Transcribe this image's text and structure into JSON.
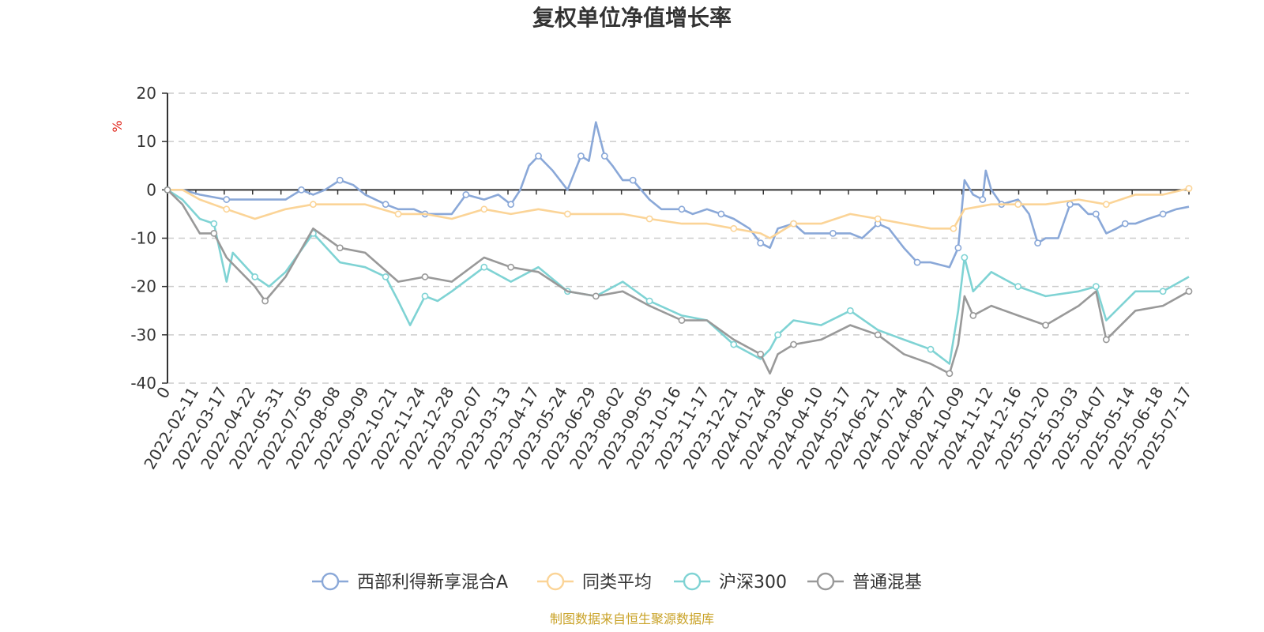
{
  "chart_data": {
    "type": "line",
    "title": "复权单位净值增长率",
    "ylabel": "%",
    "ylim": [
      -40,
      20
    ],
    "yticks": [
      "20",
      "10",
      "0",
      "-10",
      "-20",
      "-30",
      "-40"
    ],
    "ytick_values": [
      20,
      10,
      0,
      -10,
      -20,
      -30,
      -40
    ],
    "xlim": [
      "2022-01-01",
      "2025-07-21"
    ],
    "x_tick_labels": [
      "0",
      "2022-02-11",
      "2022-03-17",
      "2022-04-22",
      "2022-05-31",
      "2022-07-05",
      "2022-08-08",
      "2022-09-09",
      "2022-10-21",
      "2022-11-24",
      "2022-12-28",
      "2023-02-07",
      "2023-03-13",
      "2023-04-17",
      "2023-05-24",
      "2023-06-29",
      "2023-08-02",
      "2023-09-05",
      "2023-10-16",
      "2023-11-17",
      "2023-12-21",
      "2024-01-24",
      "2024-03-06",
      "2024-04-10",
      "2024-05-17",
      "2024-06-21",
      "2024-07-24",
      "2024-08-27",
      "2024-10-09",
      "2024-11-12",
      "2024-12-16",
      "2025-01-20",
      "2025-03-03",
      "2025-04-07",
      "2025-05-14",
      "2025-06-18",
      "2025-07-17"
    ],
    "grid": true,
    "legend_position": "bottom",
    "series": [
      {
        "name": "西部利得新享混合A",
        "color": "#8aa8d8",
        "points": [
          [
            "2022-01-01",
            0
          ],
          [
            "2022-01-20",
            0
          ],
          [
            "2022-02-11",
            -1
          ],
          [
            "2022-03-17",
            -2
          ],
          [
            "2022-04-22",
            -2
          ],
          [
            "2022-05-31",
            -2
          ],
          [
            "2022-06-20",
            0
          ],
          [
            "2022-07-05",
            -1
          ],
          [
            "2022-07-20",
            0
          ],
          [
            "2022-08-08",
            2
          ],
          [
            "2022-08-25",
            1
          ],
          [
            "2022-09-09",
            -1
          ],
          [
            "2022-10-05",
            -3
          ],
          [
            "2022-10-21",
            -4
          ],
          [
            "2022-11-10",
            -4
          ],
          [
            "2022-11-24",
            -5
          ],
          [
            "2022-12-10",
            -5
          ],
          [
            "2022-12-28",
            -5
          ],
          [
            "2023-01-15",
            -1
          ],
          [
            "2023-02-07",
            -2
          ],
          [
            "2023-02-25",
            -1
          ],
          [
            "2023-03-13",
            -3
          ],
          [
            "2023-03-25",
            0
          ],
          [
            "2023-04-05",
            5
          ],
          [
            "2023-04-17",
            7
          ],
          [
            "2023-05-05",
            4
          ],
          [
            "2023-05-24",
            0
          ],
          [
            "2023-06-10",
            7
          ],
          [
            "2023-06-20",
            6
          ],
          [
            "2023-06-29",
            14
          ],
          [
            "2023-07-10",
            7
          ],
          [
            "2023-07-20",
            5
          ],
          [
            "2023-08-02",
            2
          ],
          [
            "2023-08-15",
            2
          ],
          [
            "2023-09-05",
            -2
          ],
          [
            "2023-09-20",
            -4
          ],
          [
            "2023-10-16",
            -4
          ],
          [
            "2023-10-30",
            -5
          ],
          [
            "2023-11-17",
            -4
          ],
          [
            "2023-12-05",
            -5
          ],
          [
            "2023-12-21",
            -6
          ],
          [
            "2024-01-10",
            -8
          ],
          [
            "2024-01-24",
            -11
          ],
          [
            "2024-02-05",
            -12
          ],
          [
            "2024-02-15",
            -8
          ],
          [
            "2024-03-06",
            -7
          ],
          [
            "2024-03-20",
            -9
          ],
          [
            "2024-04-10",
            -9
          ],
          [
            "2024-04-25",
            -9
          ],
          [
            "2024-05-17",
            -9
          ],
          [
            "2024-06-01",
            -10
          ],
          [
            "2024-06-21",
            -7
          ],
          [
            "2024-07-05",
            -8
          ],
          [
            "2024-07-24",
            -12
          ],
          [
            "2024-08-10",
            -15
          ],
          [
            "2024-08-27",
            -15
          ],
          [
            "2024-09-20",
            -16
          ],
          [
            "2024-10-01",
            -12
          ],
          [
            "2024-10-09",
            2
          ],
          [
            "2024-10-20",
            -1
          ],
          [
            "2024-11-01",
            -2
          ],
          [
            "2024-11-05",
            4
          ],
          [
            "2024-11-12",
            0
          ],
          [
            "2024-11-25",
            -3
          ],
          [
            "2024-12-16",
            -2
          ],
          [
            "2024-12-30",
            -5
          ],
          [
            "2025-01-10",
            -11
          ],
          [
            "2025-01-20",
            -10
          ],
          [
            "2025-02-05",
            -10
          ],
          [
            "2025-02-20",
            -3
          ],
          [
            "2025-03-03",
            -3
          ],
          [
            "2025-03-15",
            -5
          ],
          [
            "2025-03-25",
            -5
          ],
          [
            "2025-04-07",
            -9
          ],
          [
            "2025-04-20",
            -8
          ],
          [
            "2025-05-01",
            -7
          ],
          [
            "2025-05-14",
            -7
          ],
          [
            "2025-05-30",
            -6
          ],
          [
            "2025-06-18",
            -5
          ],
          [
            "2025-07-05",
            -4
          ],
          [
            "2025-07-21",
            -3.5
          ]
        ]
      },
      {
        "name": "同类平均",
        "color": "#fbd497",
        "points": [
          [
            "2022-01-01",
            0
          ],
          [
            "2022-01-20",
            0
          ],
          [
            "2022-02-11",
            -2
          ],
          [
            "2022-03-17",
            -4
          ],
          [
            "2022-04-22",
            -6
          ],
          [
            "2022-05-31",
            -4
          ],
          [
            "2022-07-05",
            -3
          ],
          [
            "2022-08-08",
            -3
          ],
          [
            "2022-09-09",
            -3
          ],
          [
            "2022-10-21",
            -5
          ],
          [
            "2022-11-24",
            -5
          ],
          [
            "2022-12-28",
            -6
          ],
          [
            "2023-02-07",
            -4
          ],
          [
            "2023-03-13",
            -5
          ],
          [
            "2023-04-17",
            -4
          ],
          [
            "2023-05-24",
            -5
          ],
          [
            "2023-06-29",
            -5
          ],
          [
            "2023-08-02",
            -5
          ],
          [
            "2023-09-05",
            -6
          ],
          [
            "2023-10-16",
            -7
          ],
          [
            "2023-11-17",
            -7
          ],
          [
            "2023-12-21",
            -8
          ],
          [
            "2024-01-24",
            -9
          ],
          [
            "2024-02-05",
            -10
          ],
          [
            "2024-03-06",
            -7
          ],
          [
            "2024-04-10",
            -7
          ],
          [
            "2024-05-17",
            -5
          ],
          [
            "2024-06-21",
            -6
          ],
          [
            "2024-07-24",
            -7
          ],
          [
            "2024-08-27",
            -8
          ],
          [
            "2024-09-25",
            -8
          ],
          [
            "2024-10-09",
            -4
          ],
          [
            "2024-11-12",
            -3
          ],
          [
            "2024-12-16",
            -3
          ],
          [
            "2025-01-20",
            -3
          ],
          [
            "2025-03-03",
            -2
          ],
          [
            "2025-04-07",
            -3
          ],
          [
            "2025-05-14",
            -1
          ],
          [
            "2025-06-18",
            -1
          ],
          [
            "2025-07-21",
            0.3
          ]
        ]
      },
      {
        "name": "沪深300",
        "color": "#7fd3d4",
        "points": [
          [
            "2022-01-01",
            0
          ],
          [
            "2022-01-20",
            -2
          ],
          [
            "2022-02-11",
            -6
          ],
          [
            "2022-03-01",
            -7
          ],
          [
            "2022-03-17",
            -19
          ],
          [
            "2022-03-25",
            -13
          ],
          [
            "2022-04-22",
            -18
          ],
          [
            "2022-05-10",
            -20
          ],
          [
            "2022-05-31",
            -17
          ],
          [
            "2022-07-05",
            -9
          ],
          [
            "2022-08-08",
            -15
          ],
          [
            "2022-09-09",
            -16
          ],
          [
            "2022-10-05",
            -18
          ],
          [
            "2022-10-21",
            -23
          ],
          [
            "2022-11-05",
            -28
          ],
          [
            "2022-11-24",
            -22
          ],
          [
            "2022-12-10",
            -23
          ],
          [
            "2022-12-28",
            -21
          ],
          [
            "2023-02-07",
            -16
          ],
          [
            "2023-03-13",
            -19
          ],
          [
            "2023-04-17",
            -16
          ],
          [
            "2023-05-24",
            -21
          ],
          [
            "2023-06-29",
            -22
          ],
          [
            "2023-08-02",
            -19
          ],
          [
            "2023-09-05",
            -23
          ],
          [
            "2023-10-16",
            -26
          ],
          [
            "2023-11-17",
            -27
          ],
          [
            "2023-12-21",
            -32
          ],
          [
            "2024-01-24",
            -35
          ],
          [
            "2024-02-05",
            -33
          ],
          [
            "2024-02-15",
            -30
          ],
          [
            "2024-03-06",
            -27
          ],
          [
            "2024-04-10",
            -28
          ],
          [
            "2024-05-17",
            -25
          ],
          [
            "2024-06-21",
            -29
          ],
          [
            "2024-07-24",
            -31
          ],
          [
            "2024-08-27",
            -33
          ],
          [
            "2024-09-20",
            -36
          ],
          [
            "2024-10-01",
            -25
          ],
          [
            "2024-10-09",
            -14
          ],
          [
            "2024-10-20",
            -21
          ],
          [
            "2024-11-12",
            -17
          ],
          [
            "2024-12-16",
            -20
          ],
          [
            "2025-01-20",
            -22
          ],
          [
            "2025-03-03",
            -21
          ],
          [
            "2025-03-25",
            -20
          ],
          [
            "2025-04-07",
            -27
          ],
          [
            "2025-05-14",
            -21
          ],
          [
            "2025-06-18",
            -21
          ],
          [
            "2025-07-21",
            -18
          ]
        ]
      },
      {
        "name": "普通混基",
        "color": "#999999",
        "points": [
          [
            "2022-01-01",
            0
          ],
          [
            "2022-01-20",
            -3
          ],
          [
            "2022-02-11",
            -9
          ],
          [
            "2022-03-01",
            -9
          ],
          [
            "2022-03-17",
            -14
          ],
          [
            "2022-04-22",
            -20
          ],
          [
            "2022-05-05",
            -23
          ],
          [
            "2022-05-31",
            -18
          ],
          [
            "2022-07-05",
            -8
          ],
          [
            "2022-08-08",
            -12
          ],
          [
            "2022-09-09",
            -13
          ],
          [
            "2022-10-21",
            -19
          ],
          [
            "2022-11-24",
            -18
          ],
          [
            "2022-12-28",
            -19
          ],
          [
            "2023-02-07",
            -14
          ],
          [
            "2023-03-13",
            -16
          ],
          [
            "2023-04-17",
            -17
          ],
          [
            "2023-05-24",
            -21
          ],
          [
            "2023-06-29",
            -22
          ],
          [
            "2023-08-02",
            -21
          ],
          [
            "2023-09-05",
            -24
          ],
          [
            "2023-10-16",
            -27
          ],
          [
            "2023-11-17",
            -27
          ],
          [
            "2023-12-21",
            -31
          ],
          [
            "2024-01-24",
            -34
          ],
          [
            "2024-02-05",
            -38
          ],
          [
            "2024-02-15",
            -34
          ],
          [
            "2024-03-06",
            -32
          ],
          [
            "2024-04-10",
            -31
          ],
          [
            "2024-05-17",
            -28
          ],
          [
            "2024-06-21",
            -30
          ],
          [
            "2024-07-24",
            -34
          ],
          [
            "2024-08-27",
            -36
          ],
          [
            "2024-09-20",
            -38
          ],
          [
            "2024-10-01",
            -32
          ],
          [
            "2024-10-09",
            -22
          ],
          [
            "2024-10-20",
            -26
          ],
          [
            "2024-11-12",
            -24
          ],
          [
            "2024-12-16",
            -26
          ],
          [
            "2025-01-20",
            -28
          ],
          [
            "2025-03-03",
            -24
          ],
          [
            "2025-03-25",
            -21
          ],
          [
            "2025-04-07",
            -31
          ],
          [
            "2025-05-14",
            -25
          ],
          [
            "2025-06-18",
            -24
          ],
          [
            "2025-07-21",
            -21
          ]
        ]
      }
    ]
  },
  "source_text": "制图数据来自恒生聚源数据库"
}
